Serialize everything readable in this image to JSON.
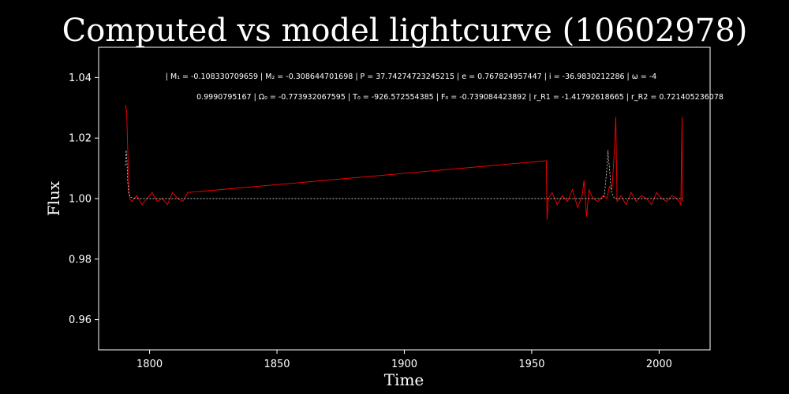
{
  "chart_data": {
    "type": "line",
    "title": "Computed vs model lightcurve (10602978)",
    "xlabel": "Time",
    "ylabel": "Flux",
    "xlim": [
      1780,
      2020
    ],
    "ylim": [
      0.95,
      1.05
    ],
    "xticks": [
      1800,
      1850,
      1900,
      1950,
      2000
    ],
    "yticks": [
      0.96,
      0.98,
      1.0,
      1.02,
      1.04
    ],
    "xtick_labels": [
      "1800",
      "1850",
      "1900",
      "1950",
      "2000"
    ],
    "ytick_labels": [
      "0.96",
      "0.98",
      "1.00",
      "1.02",
      "1.04"
    ],
    "grid": false,
    "annotations": [
      "| M₁ = -0.108330709659 | M₂ = -0.308644701698 | P = 37.74274723245215 | e = 0.767824957447 | i = -36.9830212286 | ω = -4",
      "0.9990795167 | Ω₀ = -0.773932067595 | T₀ = -926.572554385 | F₀ = -0.739084423892 | r_R1 = -1.41792618665 | r_R2 = 0.721405236078"
    ],
    "series": [
      {
        "style": "solid",
        "color": "#ff0000",
        "x": [
          1790.5,
          1791.0,
          1791.3,
          1791.7,
          1792.2,
          1793,
          1795,
          1797,
          1799,
          1801,
          1803,
          1805,
          1807,
          1809,
          1811,
          1813,
          1815,
          1955.7,
          1956.0,
          1956.5,
          1958,
          1960,
          1962,
          1964,
          1966,
          1968,
          1969.8,
          1970.5,
          1971.5,
          1972.5,
          1974,
          1976,
          1978,
          1979.5,
          1980.5,
          1981.5,
          1982.5,
          1983.0,
          1983.5,
          1985,
          1987,
          1989,
          1991,
          1993,
          1995,
          1997,
          1999,
          2001,
          2003,
          2005,
          2007,
          2008.5,
          2009.0,
          2009.1,
          2009.2
        ],
        "y": [
          1.031,
          1.029,
          1.02,
          1.008,
          1.0,
          0.999,
          1.001,
          0.998,
          1.0,
          1.002,
          0.999,
          1.0,
          0.998,
          1.002,
          1.0,
          0.999,
          1.002,
          1.0125,
          0.993,
          1.0,
          1.002,
          0.998,
          1.001,
          0.999,
          1.003,
          0.997,
          1.001,
          1.006,
          0.994,
          1.003,
          1.0,
          0.999,
          1.001,
          1.0,
          1.004,
          1.003,
          1.017,
          1.027,
          0.999,
          1.001,
          0.998,
          1.002,
          0.999,
          1.001,
          1.0,
          0.998,
          1.002,
          1.0,
          0.999,
          1.001,
          1.0,
          0.998,
          1.027,
          0.999,
          1.0
        ]
      },
      {
        "style": "dashed",
        "color": "#ffffff",
        "x": [
          1790.5,
          1790.8,
          1791.1,
          1791.4,
          1791.8,
          1792.5,
          1795,
          1815,
          1900,
          1955.7,
          1970,
          1977.5,
          1978.5,
          1979.4,
          1979.9,
          1980.4,
          1981.3,
          1982.5,
          2000,
          2009.2
        ],
        "y": [
          1.011,
          1.016,
          1.013,
          1.006,
          1.0015,
          1.0004,
          1.0,
          1.0,
          1.0,
          1.0,
          1.0,
          1.0,
          1.001,
          1.009,
          1.016,
          1.011,
          1.002,
          1.0,
          1.0,
          1.0
        ]
      }
    ]
  }
}
